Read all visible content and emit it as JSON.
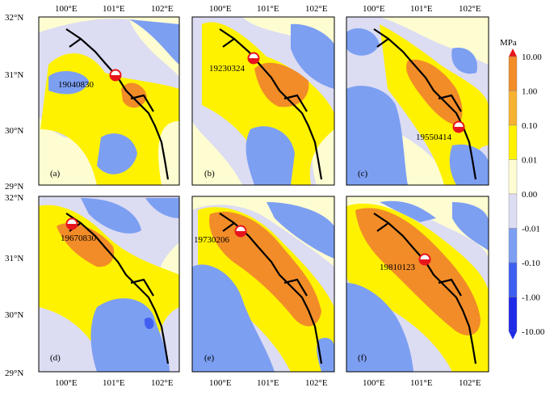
{
  "figure": {
    "lat_labels": [
      "32°N",
      "31°N",
      "30°N",
      "29°N"
    ],
    "lon_labels": [
      "100°E",
      "101°E",
      "102°E"
    ],
    "colorbar": {
      "unit": "MPa",
      "tick_labels": [
        "10.00",
        "1.00",
        "0.10",
        "0.01",
        "0.00",
        "-0.01",
        "-0.10",
        "-1.00",
        "-10.00"
      ],
      "colors": [
        "#e8141c",
        "#f28c28",
        "#f7b232",
        "#fff200",
        "#fefdd2",
        "#dcdcf3",
        "#7d9ff2",
        "#3f5ff0",
        "#1e2ae8"
      ]
    },
    "panels": [
      {
        "tag": "(a)",
        "event_label": "19040830"
      },
      {
        "tag": "(b)",
        "event_label": "19230324"
      },
      {
        "tag": "(c)",
        "event_label": "19550414"
      },
      {
        "tag": "(d)",
        "event_label": "19670830"
      },
      {
        "tag": "(e)",
        "event_label": "19730206"
      },
      {
        "tag": "(f)",
        "event_label": "19810123"
      }
    ]
  }
}
